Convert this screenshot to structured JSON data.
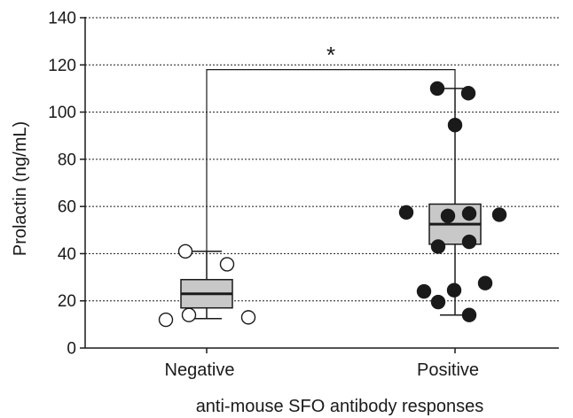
{
  "chart_data": {
    "type": "box",
    "xlabel": "anti-mouse SFO antibody responses",
    "ylabel": "Prolactin (ng/mL)",
    "ylim": [
      0,
      140
    ],
    "yticks": [
      0,
      20,
      40,
      60,
      80,
      100,
      120,
      140
    ],
    "grid": "horizontal dotted",
    "categories": [
      "Negative",
      "Positive"
    ],
    "groups": [
      {
        "category": "Negative",
        "marker": "open-circle",
        "whisker_low": 12.5,
        "q1": 17,
        "median": 23,
        "q3": 29,
        "whisker_high": 41,
        "points": [
          12,
          14,
          13,
          41,
          35.5
        ]
      },
      {
        "category": "Positive",
        "marker": "filled-circle",
        "whisker_low": 14,
        "q1": 44,
        "median": 52.5,
        "q3": 61,
        "whisker_high": 110,
        "points": [
          110,
          108,
          94.5,
          57.5,
          56,
          56.5,
          57,
          43,
          45,
          24,
          24.5,
          27.5,
          19.5,
          14
        ]
      }
    ],
    "significance": {
      "label": "*",
      "bracket_level": 118,
      "from": "Negative",
      "to": "Positive"
    }
  }
}
